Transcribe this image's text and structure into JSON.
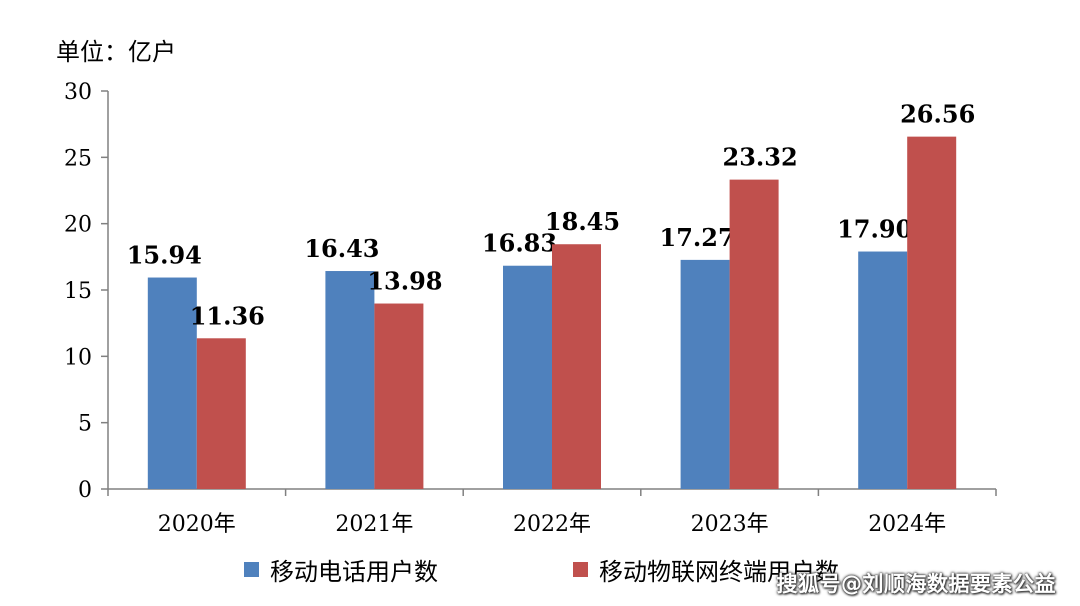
{
  "unit_label": "单位：亿户",
  "watermark": "搜狐号@刘顺海数据要素公益",
  "colors": {
    "series_0": "#4F81BD",
    "series_1": "#C0504D",
    "axis": "#808080"
  },
  "chart_data": {
    "type": "bar",
    "title": "",
    "xlabel": "",
    "ylabel": "",
    "categories": [
      "2020年",
      "2021年",
      "2022年",
      "2023年",
      "2024年"
    ],
    "series": [
      {
        "name": "移动电话用户数",
        "values": [
          15.94,
          16.43,
          16.83,
          17.27,
          17.9
        ],
        "labels": [
          "15.94",
          "16.43",
          "16.83",
          "17.27",
          "17.90"
        ]
      },
      {
        "name": "移动物联网终端用户数",
        "values": [
          11.36,
          13.98,
          18.45,
          23.32,
          26.56
        ],
        "labels": [
          "11.36",
          "13.98",
          "18.45",
          "23.32",
          "26.56"
        ]
      }
    ],
    "ylim": [
      0,
      30
    ],
    "yticks": [
      0,
      5,
      10,
      15,
      20,
      25,
      30
    ],
    "grid": false,
    "legend_position": "bottom"
  }
}
